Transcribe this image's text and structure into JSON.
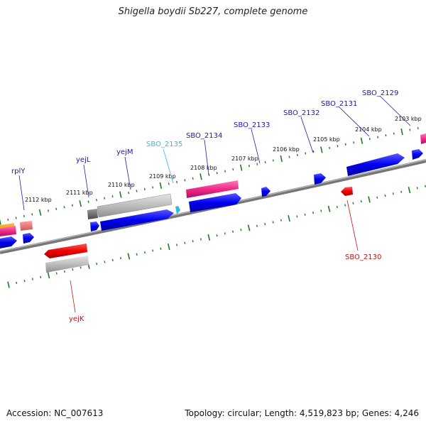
{
  "title": "Shigella boydii Sb227, complete genome",
  "footer": {
    "accession": "Accession: NC_007613",
    "summary": "Topology: circular; Length: 4,519,823 bp; Genes: 4,246"
  },
  "scale_ticks": [
    {
      "pos": 2103,
      "label": "2103 kbp"
    },
    {
      "pos": 2104,
      "label": "2104 kbp"
    },
    {
      "pos": 2105,
      "label": "2105 kbp"
    },
    {
      "pos": 2106,
      "label": "2106 kbp"
    },
    {
      "pos": 2107,
      "label": "2107 kbp"
    },
    {
      "pos": 2108,
      "label": "2108 kbp"
    },
    {
      "pos": 2109,
      "label": "2109 kbp"
    },
    {
      "pos": 2110,
      "label": "2110 kbp"
    },
    {
      "pos": 2111,
      "label": "2111 kbp"
    },
    {
      "pos": 2112,
      "label": "2112 kbp"
    }
  ],
  "gene_labels": [
    {
      "name": "SBO_2129",
      "color": "#1a1aa6"
    },
    {
      "name": "SBO_2131",
      "color": "#1a1aa6"
    },
    {
      "name": "SBO_2132",
      "color": "#1a1aa6"
    },
    {
      "name": "SBO_2133",
      "color": "#1a1aa6"
    },
    {
      "name": "SBO_2134",
      "color": "#1a1aa6"
    },
    {
      "name": "SBO_2135",
      "color": "#33bbdd"
    },
    {
      "name": "yejM",
      "color": "#1a1aa6"
    },
    {
      "name": "yejL",
      "color": "#1a1aa6"
    },
    {
      "name": "rplY",
      "color": "#1a1aa6"
    },
    {
      "name": "SBO_2130",
      "color": "#cc1111"
    },
    {
      "name": "yejK",
      "color": "#cc1111"
    }
  ]
}
